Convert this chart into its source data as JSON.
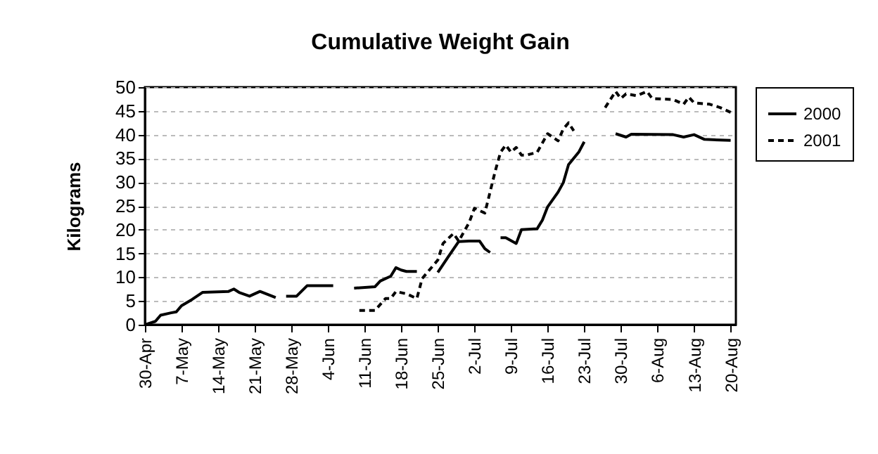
{
  "chart_data": {
    "type": "line",
    "title": "Cumulative Weight Gain",
    "ylabel": "Kilograms",
    "xlim": [
      "--04-30",
      "--08-21"
    ],
    "ylim": [
      0,
      50
    ],
    "yticks": [
      0,
      5,
      10,
      15,
      20,
      25,
      30,
      35,
      40,
      45,
      50
    ],
    "xticks": [
      {
        "value": "--04-30",
        "label": "30-Apr"
      },
      {
        "value": "--05-07",
        "label": "7-May"
      },
      {
        "value": "--05-14",
        "label": "14-May"
      },
      {
        "value": "--05-21",
        "label": "21-May"
      },
      {
        "value": "--05-28",
        "label": "28-May"
      },
      {
        "value": "--06-04",
        "label": "4-Jun"
      },
      {
        "value": "--06-11",
        "label": "11-Jun"
      },
      {
        "value": "--06-18",
        "label": "18-Jun"
      },
      {
        "value": "--06-25",
        "label": "25-Jun"
      },
      {
        "value": "--07-02",
        "label": "2-Jul"
      },
      {
        "value": "--07-09",
        "label": "9-Jul"
      },
      {
        "value": "--07-16",
        "label": "16-Jul"
      },
      {
        "value": "--07-23",
        "label": "23-Jul"
      },
      {
        "value": "--07-30",
        "label": "30-Jul"
      },
      {
        "value": "--08-06",
        "label": "6-Aug"
      },
      {
        "value": "--08-13",
        "label": "13-Aug"
      },
      {
        "value": "--08-20",
        "label": "20-Aug"
      }
    ],
    "grid": "y",
    "legend": "right",
    "marker": "none",
    "series": [
      {
        "name": "2000",
        "color": "#000000",
        "line_style": "solid",
        "x": [
          "--04-30",
          "--05-02",
          "--05-03",
          "--05-05",
          "--05-06",
          "--05-07",
          "--05-09",
          "--05-11",
          "--05-16",
          "--05-17",
          "--05-18",
          "--05-20",
          "--05-22",
          "--05-25",
          "--05-26",
          "--05-27",
          "--05-29",
          "--05-31",
          "--06-05",
          "--06-07",
          "--06-09",
          "--06-13",
          "--06-14",
          "--06-16",
          "--06-17",
          "--06-18",
          "--06-19",
          "--06-21",
          "--06-23",
          "--06-25",
          "--06-27",
          "--06-29",
          "--07-01",
          "--07-03",
          "--07-04",
          "--07-05",
          "--07-06",
          "--07-07",
          "--07-08",
          "--07-10",
          "--07-11",
          "--07-14",
          "--07-15",
          "--07-16",
          "--07-18",
          "--07-19",
          "--07-20",
          "--07-22",
          "--07-23",
          "--07-26",
          "--07-29",
          "--07-31",
          "--08-01",
          "--08-09",
          "--08-11",
          "--08-13",
          "--08-15",
          "--08-20"
        ],
        "values": [
          0,
          0.7,
          2,
          2.5,
          2.7,
          4,
          5.3,
          6.8,
          7,
          7.5,
          6.8,
          6,
          7,
          5.7,
          null,
          6,
          6,
          8.2,
          8.2,
          null,
          7.7,
          8,
          9.2,
          10.2,
          12,
          11.5,
          11.2,
          11.2,
          null,
          11,
          14.3,
          17.5,
          17.6,
          17.6,
          16,
          15.2,
          null,
          18.3,
          18.3,
          17.1,
          20,
          20.2,
          22,
          24.8,
          27.9,
          29.9,
          33.7,
          36.4,
          38.5,
          null,
          40.2,
          39.5,
          40.1,
          40,
          39.5,
          40,
          39,
          38.8
        ]
      },
      {
        "name": "2001",
        "color": "#000000",
        "line_style": "dashed",
        "x": [
          "--06-10",
          "--06-13",
          "--06-15",
          "--06-16",
          "--06-17",
          "--06-19",
          "--06-21",
          "--06-22",
          "--06-25",
          "--06-26",
          "--06-28",
          "--06-29",
          "--07-01",
          "--07-02",
          "--07-04",
          "--07-06",
          "--07-07",
          "--07-08",
          "--07-09",
          "--07-10",
          "--07-11",
          "--07-12",
          "--07-14",
          "--07-16",
          "--07-18",
          "--07-19",
          "--07-20",
          "--07-21",
          "--07-24",
          "--07-27",
          "--07-29",
          "--07-30",
          "--07-31",
          "--08-02",
          "--08-04",
          "--08-05",
          "--08-09",
          "--08-11",
          "--08-12",
          "--08-13",
          "--08-16",
          "--08-18",
          "--08-20"
        ],
        "values": [
          3,
          3,
          5.5,
          5.5,
          7,
          6.5,
          5.5,
          9.7,
          13.6,
          17.1,
          19.2,
          17.6,
          21.5,
          24.5,
          23.5,
          32.4,
          36.3,
          37.8,
          36.3,
          37.3,
          35.7,
          35.7,
          36.3,
          40.2,
          38.7,
          41.2,
          42.5,
          40.8,
          null,
          45.7,
          49.1,
          47.6,
          48.6,
          48.2,
          49.1,
          47.6,
          47.4,
          46.4,
          47.9,
          46.7,
          46.4,
          45.7,
          44.7
        ]
      }
    ]
  }
}
